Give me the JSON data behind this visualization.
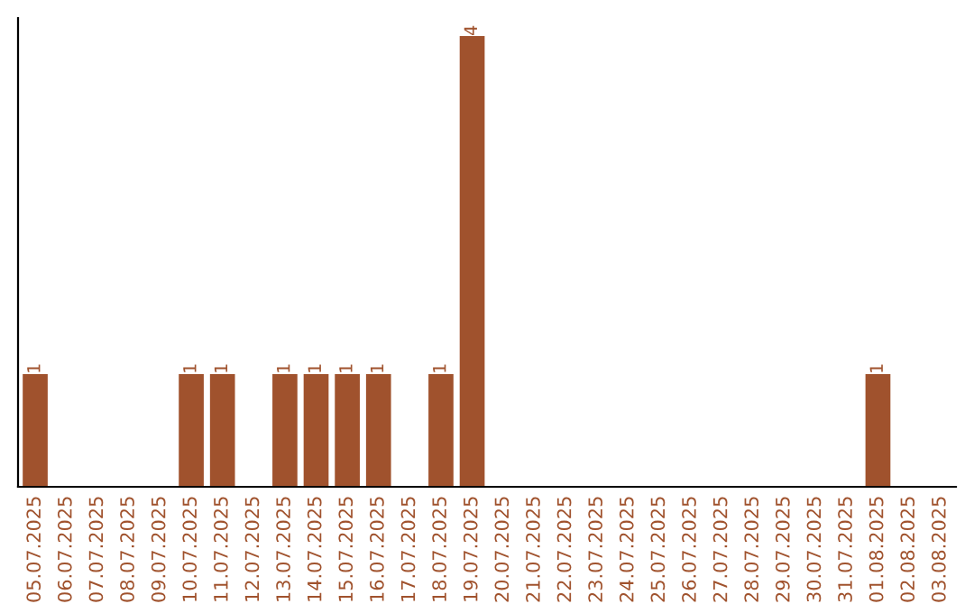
{
  "chart_data": {
    "type": "bar",
    "categories": [
      "05.07.2025",
      "06.07.2025",
      "07.07.2025",
      "08.07.2025",
      "09.07.2025",
      "10.07.2025",
      "11.07.2025",
      "12.07.2025",
      "13.07.2025",
      "14.07.2025",
      "15.07.2025",
      "16.07.2025",
      "17.07.2025",
      "18.07.2025",
      "19.07.2025",
      "20.07.2025",
      "21.07.2025",
      "22.07.2025",
      "23.07.2025",
      "24.07.2025",
      "25.07.2025",
      "26.07.2025",
      "27.07.2025",
      "28.07.2025",
      "29.07.2025",
      "30.07.2025",
      "31.07.2025",
      "01.08.2025",
      "02.08.2025",
      "03.08.2025"
    ],
    "values": [
      1,
      0,
      0,
      0,
      0,
      1,
      1,
      0,
      1,
      1,
      1,
      1,
      0,
      1,
      4,
      0,
      0,
      0,
      0,
      0,
      0,
      0,
      0,
      0,
      0,
      0,
      0,
      1,
      0,
      0
    ],
    "value_labels": [
      "1",
      null,
      null,
      null,
      null,
      "1",
      "1",
      null,
      "1",
      "1",
      "1",
      "1",
      null,
      "1",
      "4",
      null,
      null,
      null,
      null,
      null,
      null,
      null,
      null,
      null,
      null,
      null,
      null,
      "1",
      null,
      null
    ],
    "color": "#a0522d",
    "grid": false,
    "legend": false
  }
}
